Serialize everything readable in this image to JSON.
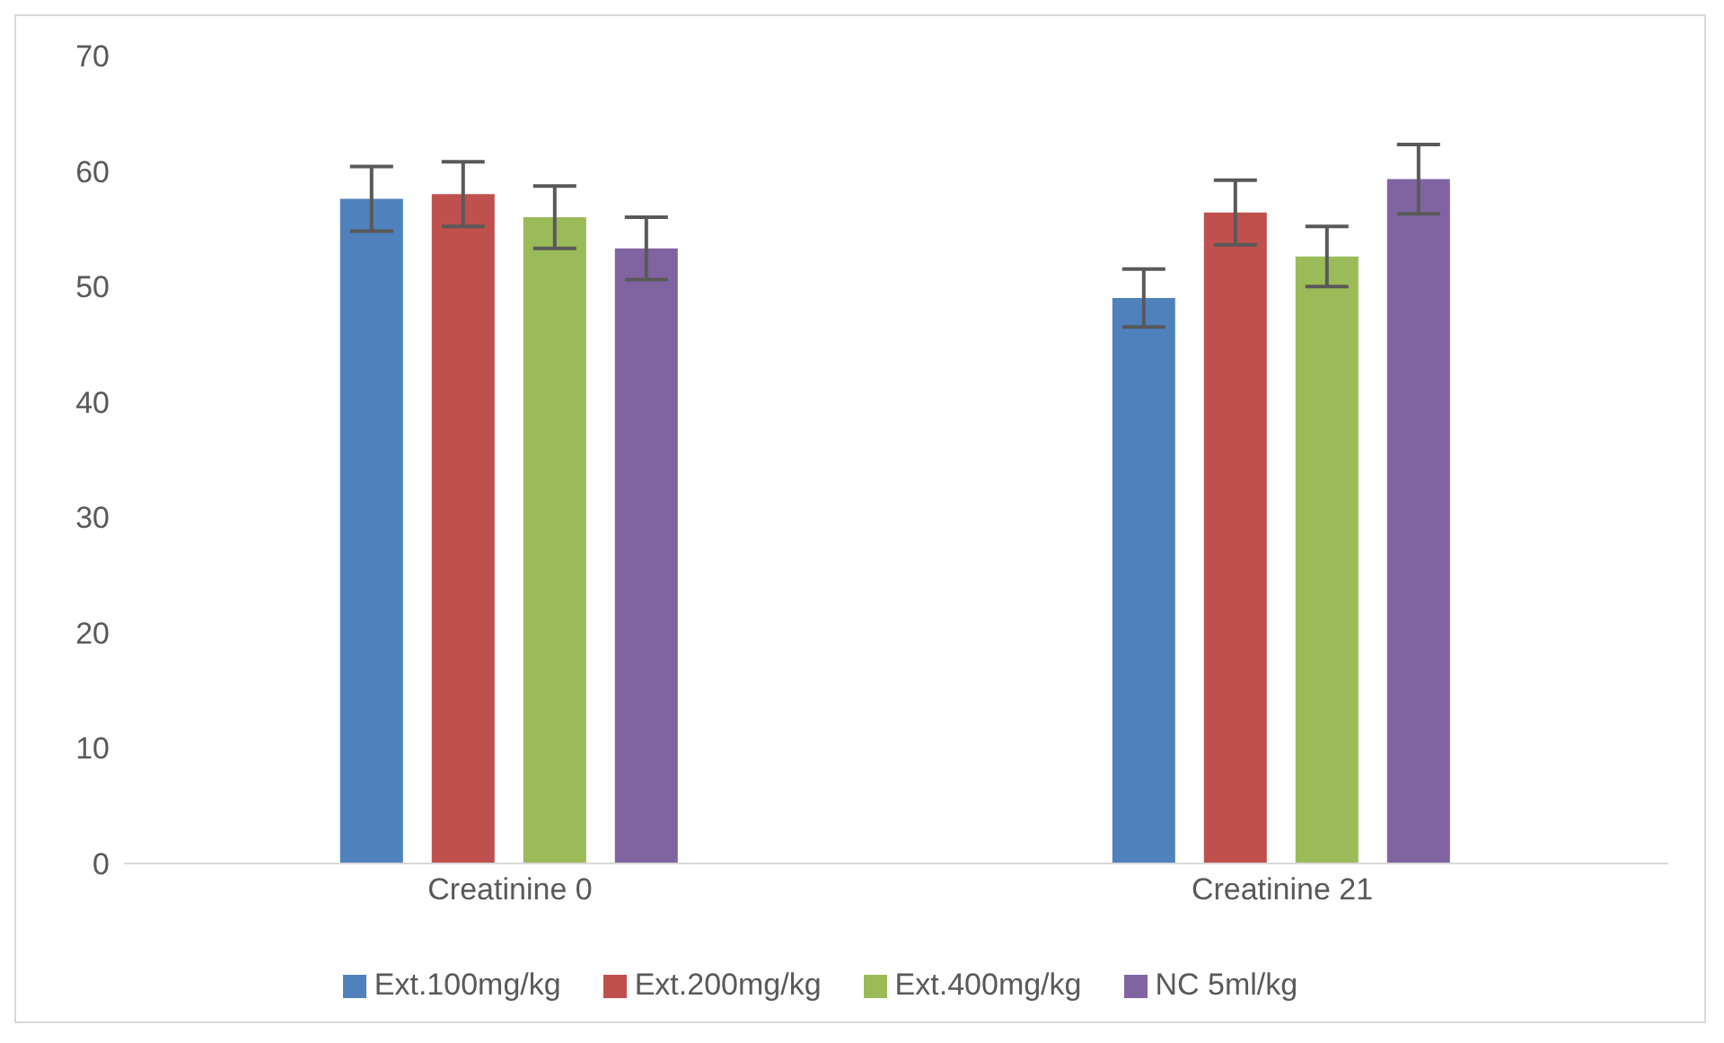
{
  "chart_data": {
    "type": "bar",
    "categories": [
      "Creatinine 0",
      "Creatinine 21"
    ],
    "series": [
      {
        "name": "Ext.100mg/kg",
        "color": "#4f81bd",
        "values": [
          57.6,
          49.0
        ],
        "errors": [
          2.8,
          2.5
        ]
      },
      {
        "name": "Ext.200mg/kg",
        "color": "#c0504d",
        "values": [
          58.0,
          56.4
        ],
        "errors": [
          2.8,
          2.8
        ]
      },
      {
        "name": "Ext.400mg/kg",
        "color": "#9bbb59",
        "values": [
          56.0,
          52.6
        ],
        "errors": [
          2.7,
          2.6
        ]
      },
      {
        "name": "NC   5ml/kg",
        "color": "#8064a2",
        "values": [
          53.3,
          59.3
        ],
        "errors": [
          2.7,
          3.0
        ]
      }
    ],
    "ylim": [
      0,
      70
    ],
    "yticks": [
      0,
      10,
      20,
      30,
      40,
      50,
      60,
      70
    ],
    "grid": false,
    "legend": "bottom"
  }
}
